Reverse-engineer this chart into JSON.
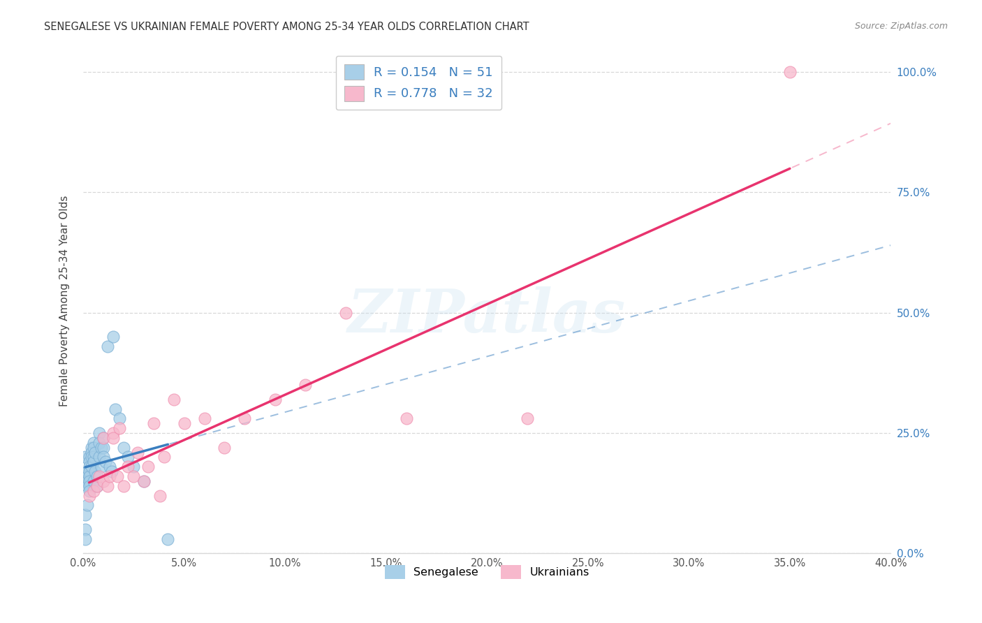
{
  "title": "SENEGALESE VS UKRAINIAN FEMALE POVERTY AMONG 25-34 YEAR OLDS CORRELATION CHART",
  "source": "Source: ZipAtlas.com",
  "ylabel": "Female Poverty Among 25-34 Year Olds",
  "xlim": [
    0.0,
    0.4
  ],
  "ylim": [
    0.0,
    1.05
  ],
  "xticks": [
    0.0,
    0.05,
    0.1,
    0.15,
    0.2,
    0.25,
    0.3,
    0.35,
    0.4
  ],
  "yticks": [
    0.0,
    0.25,
    0.5,
    0.75,
    1.0
  ],
  "senegalese_R": 0.154,
  "senegalese_N": 51,
  "ukrainian_R": 0.778,
  "ukrainian_N": 32,
  "blue_scatter_color": "#a8cfe8",
  "blue_scatter_edge": "#7bafd4",
  "pink_scatter_color": "#f7b8cc",
  "pink_scatter_edge": "#f090b0",
  "blue_line_color": "#3a7ebf",
  "pink_line_color": "#e8336e",
  "blue_text_color": "#3a7ebf",
  "grid_color": "#d8d8d8",
  "watermark_color": "#c5dff0",
  "watermark": "ZIPatlas",
  "sen_x": [
    0.001,
    0.001,
    0.001,
    0.001,
    0.001,
    0.002,
    0.002,
    0.002,
    0.002,
    0.002,
    0.003,
    0.003,
    0.003,
    0.003,
    0.003,
    0.003,
    0.003,
    0.003,
    0.004,
    0.004,
    0.004,
    0.004,
    0.005,
    0.005,
    0.005,
    0.005,
    0.005,
    0.006,
    0.006,
    0.007,
    0.007,
    0.008,
    0.008,
    0.008,
    0.009,
    0.009,
    0.01,
    0.01,
    0.01,
    0.011,
    0.012,
    0.013,
    0.014,
    0.015,
    0.016,
    0.018,
    0.02,
    0.022,
    0.025,
    0.03,
    0.042
  ],
  "sen_y": [
    0.15,
    0.2,
    0.08,
    0.05,
    0.03,
    0.17,
    0.16,
    0.15,
    0.14,
    0.1,
    0.2,
    0.19,
    0.18,
    0.17,
    0.16,
    0.15,
    0.14,
    0.13,
    0.22,
    0.21,
    0.2,
    0.18,
    0.23,
    0.22,
    0.2,
    0.19,
    0.15,
    0.21,
    0.17,
    0.16,
    0.14,
    0.25,
    0.23,
    0.2,
    0.22,
    0.18,
    0.24,
    0.22,
    0.2,
    0.19,
    0.43,
    0.18,
    0.17,
    0.45,
    0.3,
    0.28,
    0.22,
    0.2,
    0.18,
    0.15,
    0.03
  ],
  "ukr_x": [
    0.003,
    0.005,
    0.007,
    0.008,
    0.01,
    0.01,
    0.012,
    0.013,
    0.015,
    0.015,
    0.017,
    0.018,
    0.02,
    0.022,
    0.025,
    0.027,
    0.03,
    0.032,
    0.035,
    0.038,
    0.04,
    0.045,
    0.05,
    0.06,
    0.07,
    0.08,
    0.095,
    0.11,
    0.13,
    0.16,
    0.22,
    0.35
  ],
  "ukr_y": [
    0.12,
    0.13,
    0.14,
    0.16,
    0.15,
    0.24,
    0.14,
    0.16,
    0.25,
    0.24,
    0.16,
    0.26,
    0.14,
    0.18,
    0.16,
    0.21,
    0.15,
    0.18,
    0.27,
    0.12,
    0.2,
    0.32,
    0.27,
    0.28,
    0.22,
    0.28,
    0.32,
    0.35,
    0.5,
    0.28,
    0.28,
    1.0
  ]
}
